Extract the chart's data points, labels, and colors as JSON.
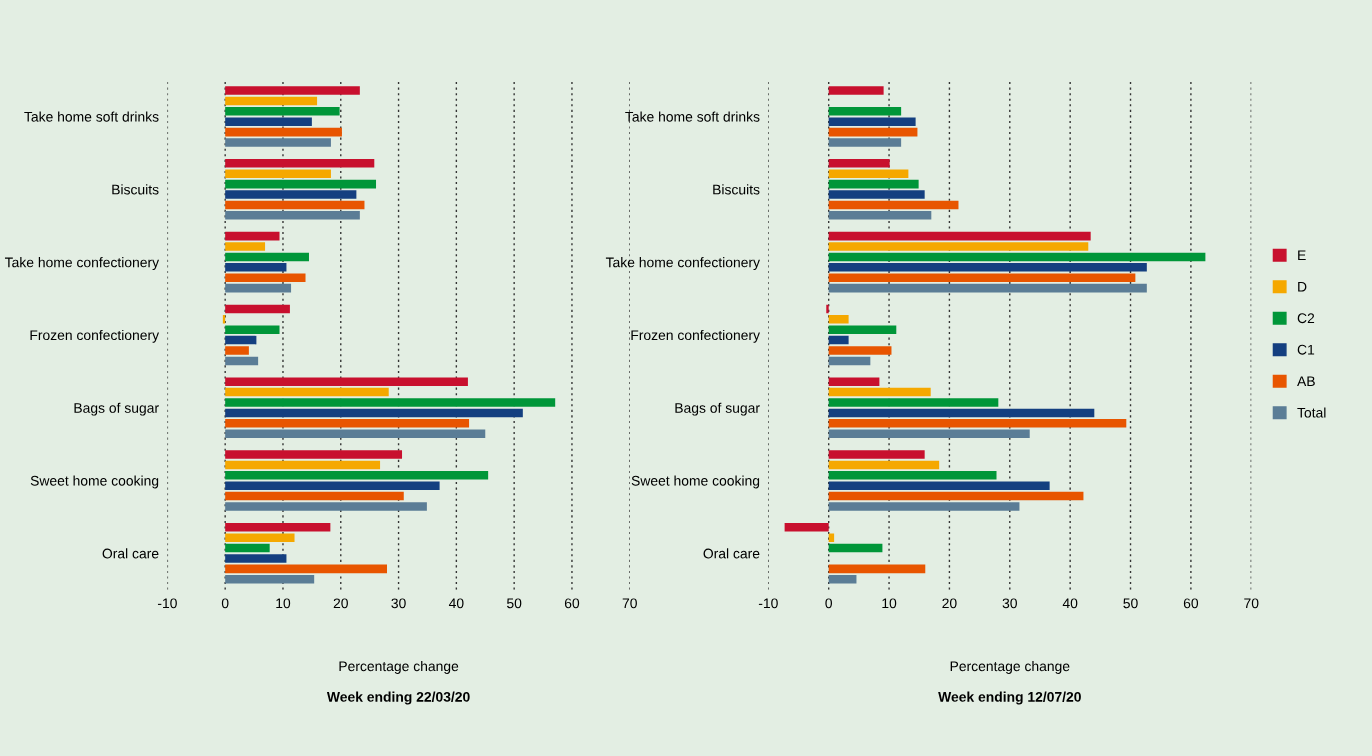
{
  "chart_data": [
    {
      "type": "bar",
      "orientation": "horizontal",
      "title": "Week ending 22/03/20",
      "xlabel": "Percentage change",
      "categories": [
        "Take home soft drinks",
        "Biscuits",
        "Take home confectionery",
        "Frozen confectionery",
        "Bags of sugar",
        "Sweet home cooking",
        "Oral care"
      ],
      "series": [
        {
          "color": "#c8102e",
          "values": [
            23.3,
            25.8,
            9.4,
            11.2,
            42.0,
            30.6,
            18.2
          ]
        },
        {
          "color": "#f5a800",
          "values": [
            15.9,
            18.3,
            6.9,
            -0.4,
            28.3,
            26.8,
            12.0
          ]
        },
        {
          "color": "#009639",
          "values": [
            19.8,
            26.1,
            14.5,
            9.4,
            57.1,
            45.5,
            7.7
          ]
        },
        {
          "color": "#143f80",
          "values": [
            15.0,
            22.7,
            10.6,
            5.4,
            51.5,
            37.1,
            10.6
          ]
        },
        {
          "color": "#e85500",
          "values": [
            20.2,
            24.1,
            13.9,
            4.1,
            42.2,
            30.9,
            28.0
          ]
        },
        {
          "color": "#5b7d96",
          "values": [
            18.3,
            23.3,
            11.4,
            5.7,
            45.0,
            34.9,
            15.4
          ]
        }
      ],
      "xlim": [
        -10,
        70
      ],
      "xticks": [
        -10,
        0,
        10,
        20,
        30,
        40,
        50,
        60,
        70
      ],
      "grid": "x"
    },
    {
      "type": "bar",
      "orientation": "horizontal",
      "title": "Week ending 12/07/20",
      "xlabel": "Percentage change",
      "categories": [
        "Take home soft drinks",
        "Biscuits",
        "Take home confectionery",
        "Frozen confectionery",
        "Bags of sugar",
        "Sweet home cooking",
        "Oral care"
      ],
      "series": [
        {
          "name": "E",
          "color": "#c8102e",
          "values": [
            9.1,
            10.1,
            43.4,
            -0.4,
            8.4,
            15.9,
            -7.3
          ]
        },
        {
          "name": "D",
          "color": "#f5a800",
          "values": [
            null,
            13.2,
            43.0,
            3.3,
            16.9,
            18.3,
            0.9
          ]
        },
        {
          "name": "C2",
          "color": "#009639",
          "values": [
            12.0,
            14.9,
            62.4,
            11.2,
            28.1,
            27.8,
            8.9
          ]
        },
        {
          "name": "C1",
          "color": "#143f80",
          "values": [
            14.4,
            15.9,
            52.7,
            3.3,
            44.0,
            36.6,
            null
          ]
        },
        {
          "name": "AB",
          "color": "#e85500",
          "values": [
            14.7,
            21.5,
            50.8,
            10.4,
            49.3,
            42.2,
            16.0
          ]
        },
        {
          "name": "Total",
          "color": "#5b7d96",
          "values": [
            12.0,
            17.0,
            52.7,
            6.9,
            33.3,
            31.6,
            4.6
          ]
        }
      ],
      "xlim": [
        -10,
        70
      ],
      "xticks": [
        -10,
        0,
        10,
        20,
        30,
        40,
        50,
        60,
        70
      ],
      "grid": "x",
      "legend": "right"
    }
  ]
}
